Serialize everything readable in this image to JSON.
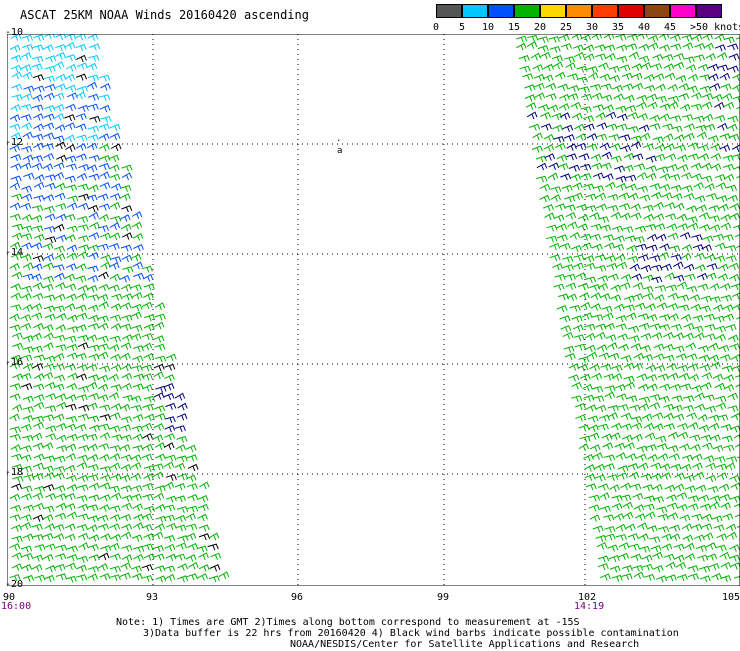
{
  "title": "ASCAT 25KM NOAA Winds 20160420 ascending",
  "colorbar": {
    "colors": [
      "#555555",
      "#00c8ff",
      "#0050ff",
      "#00b400",
      "#ffd700",
      "#ff8c00",
      "#ff3c00",
      "#e00000",
      "#8b4513",
      "#ff00c8",
      "#5a0080"
    ],
    "labels": [
      "0",
      "5",
      "10",
      "15",
      "20",
      "25",
      "30",
      "35",
      "40",
      "45",
      ">50 knots"
    ]
  },
  "map": {
    "lat_labels": [
      "-10",
      "-12",
      "-14",
      "-16",
      "-18",
      "-20"
    ],
    "lon_labels": [
      "90",
      "93",
      "96",
      "99",
      "102",
      "105"
    ],
    "time_left": "16:00",
    "time_right": "14:19"
  },
  "notes": {
    "line1": "Note: 1) Times are GMT 2)Times along bottom correspond to measurement at -15S",
    "line2": "3)Data buffer is 22 hrs from 20160420 4) Black wind barbs indicate possible contamination",
    "line3": "NOAA/NESDIS/Center for Satellite Applications and Research"
  }
}
